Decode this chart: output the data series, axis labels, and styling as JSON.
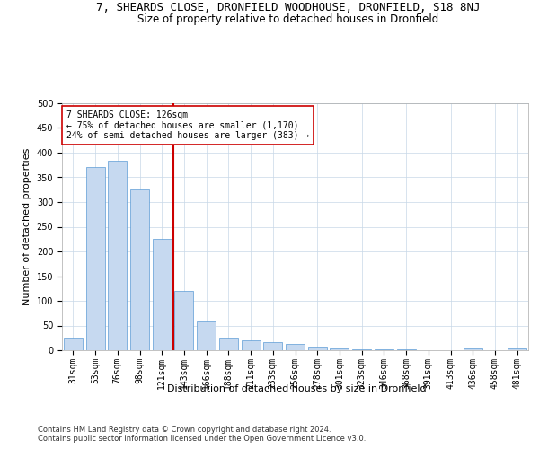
{
  "title_line1": "7, SHEARDS CLOSE, DRONFIELD WOODHOUSE, DRONFIELD, S18 8NJ",
  "title_line2": "Size of property relative to detached houses in Dronfield",
  "xlabel": "Distribution of detached houses by size in Dronfield",
  "ylabel": "Number of detached properties",
  "categories": [
    "31sqm",
    "53sqm",
    "76sqm",
    "98sqm",
    "121sqm",
    "143sqm",
    "166sqm",
    "188sqm",
    "211sqm",
    "233sqm",
    "256sqm",
    "278sqm",
    "301sqm",
    "323sqm",
    "346sqm",
    "368sqm",
    "391sqm",
    "413sqm",
    "436sqm",
    "458sqm",
    "481sqm"
  ],
  "values": [
    25,
    370,
    383,
    325,
    225,
    120,
    58,
    25,
    20,
    16,
    13,
    7,
    4,
    2,
    1,
    1,
    0,
    0,
    4,
    0,
    4
  ],
  "bar_color": "#c6d9f0",
  "bar_edge_color": "#5b9bd5",
  "vline_x": 4.5,
  "vline_color": "#cc0000",
  "annotation_text": "7 SHEARDS CLOSE: 126sqm\n← 75% of detached houses are smaller (1,170)\n24% of semi-detached houses are larger (383) →",
  "annotation_box_color": "#ffffff",
  "annotation_box_edge": "#cc0000",
  "ylim": [
    0,
    500
  ],
  "yticks": [
    0,
    50,
    100,
    150,
    200,
    250,
    300,
    350,
    400,
    450,
    500
  ],
  "footer_line1": "Contains HM Land Registry data © Crown copyright and database right 2024.",
  "footer_line2": "Contains public sector information licensed under the Open Government Licence v3.0.",
  "background_color": "#ffffff",
  "grid_color": "#c8d8e8",
  "title_fontsize": 9,
  "subtitle_fontsize": 8.5,
  "axis_label_fontsize": 8,
  "tick_fontsize": 7,
  "annotation_fontsize": 7,
  "footer_fontsize": 6
}
